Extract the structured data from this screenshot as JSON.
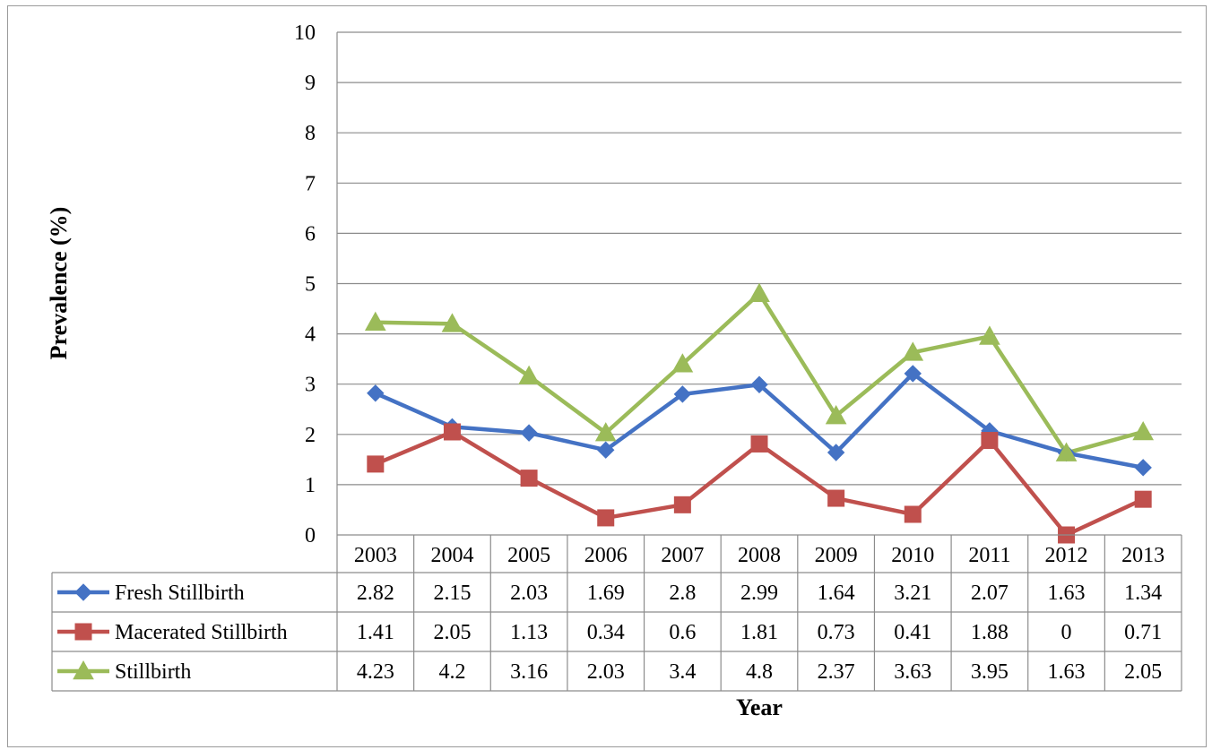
{
  "chart_data": {
    "type": "line",
    "xlabel": "Year",
    "ylabel": "Prevalence (%)",
    "ylim": [
      0,
      10
    ],
    "yticks": [
      "0",
      "1",
      "2",
      "3",
      "4",
      "5",
      "6",
      "7",
      "8",
      "9",
      "10"
    ],
    "grid": "horizontal",
    "categories": [
      "2003",
      "2004",
      "2005",
      "2006",
      "2007",
      "2008",
      "2009",
      "2010",
      "2011",
      "2012",
      "2013"
    ],
    "series": [
      {
        "name": "Fresh Stillbirth",
        "color": "#4472c4",
        "marker": "diamond",
        "values": [
          2.82,
          2.15,
          2.03,
          1.69,
          2.8,
          2.99,
          1.64,
          3.21,
          2.07,
          1.63,
          1.34
        ],
        "labels": [
          "2.82",
          "2.15",
          "2.03",
          "1.69",
          "2.8",
          "2.99",
          "1.64",
          "3.21",
          "2.07",
          "1.63",
          "1.34"
        ]
      },
      {
        "name": "Macerated Stillbirth",
        "color": "#c0504d",
        "marker": "square",
        "values": [
          1.41,
          2.05,
          1.13,
          0.34,
          0.6,
          1.81,
          0.73,
          0.41,
          1.88,
          0,
          0.71
        ],
        "labels": [
          "1.41",
          "2.05",
          "1.13",
          "0.34",
          "0.6",
          "1.81",
          "0.73",
          "0.41",
          "1.88",
          "0",
          "0.71"
        ]
      },
      {
        "name": "Stillbirth",
        "color": "#9bbb59",
        "marker": "triangle",
        "values": [
          4.23,
          4.2,
          3.16,
          2.03,
          3.4,
          4.8,
          2.37,
          3.63,
          3.95,
          1.63,
          2.05
        ],
        "labels": [
          "4.23",
          "4.2",
          "3.16",
          "2.03",
          "3.4",
          "4.8",
          "2.37",
          "3.63",
          "3.95",
          "1.63",
          "2.05"
        ]
      }
    ],
    "legend": "data-table"
  }
}
